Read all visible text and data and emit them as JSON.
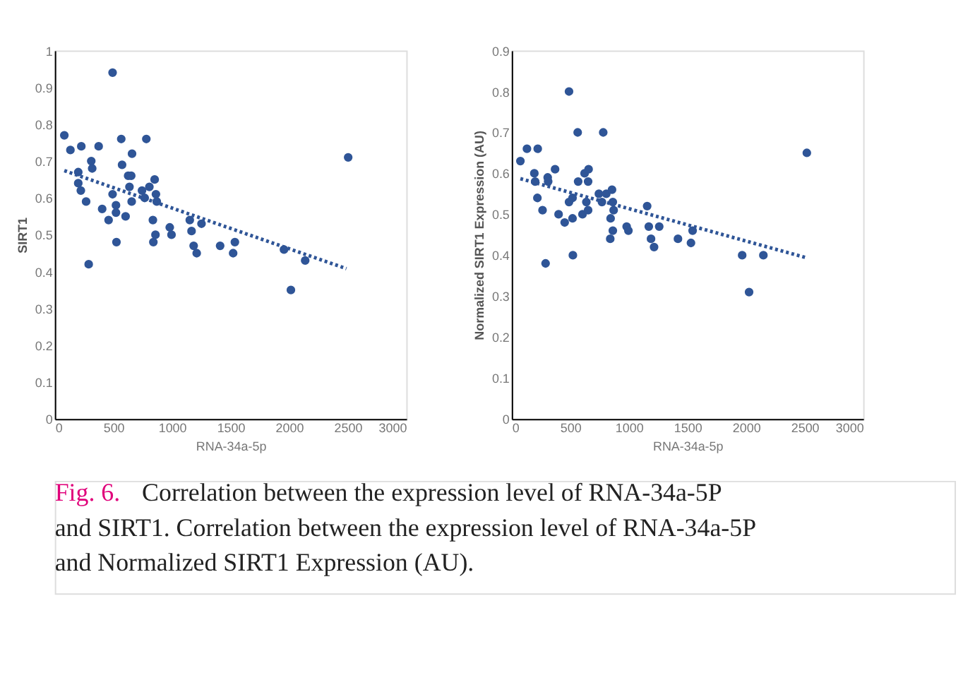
{
  "chart_data": [
    {
      "type": "scatter",
      "xlabel": "RNA-34a-5p",
      "ylabel": "SIRT1",
      "xlim": [
        0,
        3000
      ],
      "ylim": [
        0,
        1
      ],
      "xticks": [
        0,
        500,
        1000,
        1500,
        2000,
        2500,
        3000
      ],
      "yticks": [
        0,
        0.1,
        0.2,
        0.3,
        0.4,
        0.5,
        0.6,
        0.7,
        0.8,
        0.9,
        1
      ],
      "grid": false,
      "legend": false,
      "marker": "circle",
      "annotations": [
        "Fig. 6.",
        "Correlation between the expression level of RNA-34a-5P and SIRT1. Correlation between the expression level of RNA-34a-5P and Normalized SIRT1 Expression (AU)."
      ],
      "series": [
        {
          "type": "scatter",
          "color": "#2f5597",
          "x": [
            81,
            133,
            226,
            200,
            200,
            222,
            267,
            289,
            311,
            319,
            374,
            404,
            459,
            493,
            493,
            522,
            522,
            526,
            567,
            574,
            604,
            626,
            637,
            652,
            656,
            659,
            744,
            767,
            781,
            807,
            837,
            841,
            852,
            863,
            859,
            870,
            981,
            996,
            1152,
            1167,
            1185,
            1211,
            1252,
            1411,
            1522,
            1537,
            1956,
            2015,
            2137,
            2504
          ],
          "values": [
            0.77,
            0.73,
            0.74,
            0.67,
            0.64,
            0.62,
            0.59,
            0.42,
            0.7,
            0.68,
            0.74,
            0.57,
            0.54,
            0.94,
            0.61,
            0.58,
            0.56,
            0.48,
            0.76,
            0.69,
            0.55,
            0.66,
            0.63,
            0.66,
            0.59,
            0.72,
            0.62,
            0.6,
            0.76,
            0.63,
            0.54,
            0.48,
            0.65,
            0.61,
            0.5,
            0.59,
            0.52,
            0.5,
            0.54,
            0.51,
            0.47,
            0.45,
            0.53,
            0.47,
            0.45,
            0.48,
            0.46,
            0.35,
            0.43,
            0.71
          ]
        },
        {
          "type": "line",
          "line_style": "dotted",
          "marker": "none",
          "color": "#2f5597",
          "x": [
            81,
            2489
          ],
          "values": [
            0.674,
            0.408
          ]
        }
      ]
    },
    {
      "type": "scatter",
      "xlabel": "RNA-34a-5p",
      "ylabel": "Normalized SIRT1 Expression (AU)",
      "xlim": [
        0,
        3000
      ],
      "ylim": [
        0,
        0.9
      ],
      "xticks": [
        0,
        500,
        1000,
        1500,
        2000,
        2500,
        3000
      ],
      "yticks": [
        0,
        0.1,
        0.2,
        0.3,
        0.4,
        0.5,
        0.6,
        0.7,
        0.8,
        0.9
      ],
      "grid": false,
      "legend": false,
      "marker": "circle",
      "series": [
        {
          "type": "scatter",
          "color": "#2f5597",
          "x": [
            74,
            130,
            222,
            193,
            200,
            219,
            263,
            289,
            307,
            311,
            370,
            400,
            452,
            489,
            489,
            519,
            519,
            522,
            563,
            567,
            604,
            622,
            637,
            652,
            652,
            656,
            744,
            770,
            781,
            807,
            841,
            844,
            856,
            863,
            863,
            870,
            981,
            996,
            1156,
            1170,
            1189,
            1215,
            1259,
            1419,
            1530,
            1544,
            1967,
            2026,
            2148,
            2519
          ],
          "values": [
            0.63,
            0.66,
            0.66,
            0.6,
            0.58,
            0.54,
            0.51,
            0.38,
            0.59,
            0.58,
            0.61,
            0.5,
            0.48,
            0.8,
            0.53,
            0.54,
            0.49,
            0.4,
            0.7,
            0.58,
            0.5,
            0.6,
            0.53,
            0.58,
            0.51,
            0.61,
            0.55,
            0.53,
            0.7,
            0.55,
            0.44,
            0.49,
            0.56,
            0.53,
            0.46,
            0.51,
            0.47,
            0.46,
            0.52,
            0.47,
            0.44,
            0.42,
            0.47,
            0.44,
            0.43,
            0.46,
            0.4,
            0.31,
            0.4,
            0.65
          ]
        },
        {
          "type": "line",
          "line_style": "dotted",
          "marker": "none",
          "color": "#2f5597",
          "x": [
            74,
            2526
          ],
          "values": [
            0.587,
            0.393
          ]
        }
      ]
    }
  ]
}
